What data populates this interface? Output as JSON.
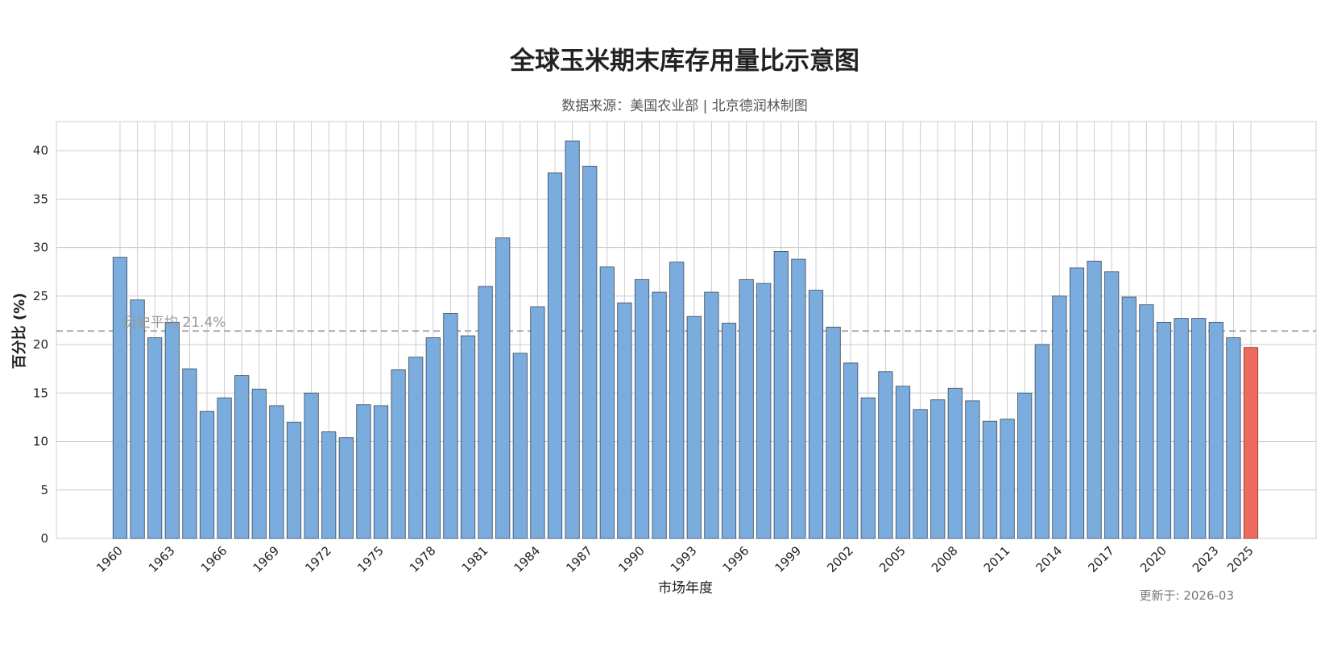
{
  "chart_data": {
    "type": "bar",
    "title": "全球玉米期末库存用量比示意图",
    "subtitle": "数据来源：美国农业部 | 北京德润林制图",
    "xlabel": "市场年度",
    "ylabel": "百分比 (%)",
    "ylim": [
      0,
      43
    ],
    "yticks": [
      0,
      5,
      10,
      15,
      20,
      25,
      30,
      35,
      40
    ],
    "grid": true,
    "categories": [
      "1960",
      "1961",
      "1962",
      "1963",
      "1964",
      "1965",
      "1966",
      "1967",
      "1968",
      "1969",
      "1970",
      "1971",
      "1972",
      "1973",
      "1974",
      "1975",
      "1976",
      "1977",
      "1978",
      "1979",
      "1980",
      "1981",
      "1982",
      "1983",
      "1984",
      "1985",
      "1986",
      "1987",
      "1988",
      "1989",
      "1990",
      "1991",
      "1992",
      "1993",
      "1994",
      "1995",
      "1996",
      "1997",
      "1998",
      "1999",
      "2000",
      "2001",
      "2002",
      "2003",
      "2004",
      "2005",
      "2006",
      "2007",
      "2008",
      "2009",
      "2010",
      "2011",
      "2012",
      "2013",
      "2014",
      "2015",
      "2016",
      "2017",
      "2018",
      "2019",
      "2020",
      "2021",
      "2022",
      "2023",
      "2024",
      "2025"
    ],
    "x_tick_labels": [
      "1960",
      "1963",
      "1966",
      "1969",
      "1972",
      "1975",
      "1978",
      "1981",
      "1984",
      "1987",
      "1990",
      "1993",
      "1996",
      "1999",
      "2002",
      "2005",
      "2008",
      "2011",
      "2014",
      "2017",
      "2020",
      "2023",
      "2025"
    ],
    "values": [
      29.0,
      24.6,
      20.7,
      22.3,
      17.5,
      13.1,
      14.5,
      16.8,
      15.4,
      13.7,
      12.0,
      15.0,
      11.0,
      10.4,
      13.8,
      13.7,
      17.4,
      18.7,
      20.7,
      23.2,
      20.9,
      26.0,
      31.0,
      19.1,
      23.9,
      37.7,
      41.0,
      38.4,
      28.0,
      24.3,
      26.7,
      25.4,
      28.5,
      22.9,
      25.4,
      22.2,
      26.7,
      26.3,
      29.6,
      28.8,
      25.6,
      21.8,
      18.1,
      14.5,
      17.2,
      15.7,
      13.3,
      14.3,
      15.5,
      14.2,
      12.1,
      12.3,
      15.0,
      20.0,
      25.0,
      27.9,
      28.6,
      27.5,
      24.9,
      24.1,
      22.3,
      22.7,
      22.7,
      22.3,
      20.7,
      19.7
    ],
    "highlight_category": "2025",
    "colors": {
      "bar": "#7aacde",
      "bar_edge": "#3c4a58",
      "highlight": "#ec6b5e",
      "highlight_edge": "#8c3a32",
      "grid": "#cccccc",
      "avg_line": "#aaaaaa"
    },
    "reference_line": {
      "value": 21.4,
      "label": "历史平均 21.4%"
    },
    "footnote": "更新于: 2026-03"
  }
}
